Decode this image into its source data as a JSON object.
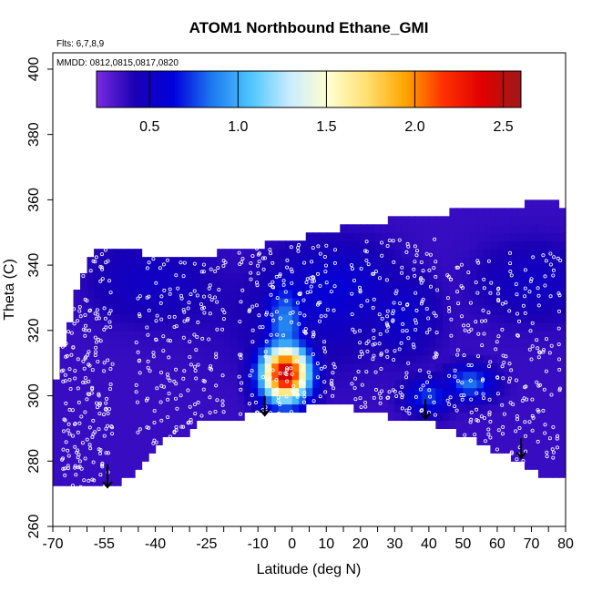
{
  "chart_data": {
    "type": "heatmap",
    "title": "ATOM1 Northbound Ethane_GMI",
    "notes": {
      "flights": "Flts: 6,7,8,9",
      "dates": "MMDD: 0812,0815,0817,0820"
    },
    "xlabel": "Latitude (deg N)",
    "ylabel": "Theta (C)",
    "xlim": [
      -70,
      80
    ],
    "ylim": [
      260,
      405
    ],
    "x_major_ticks": [
      -70,
      -55,
      -40,
      -25,
      -10,
      0,
      10,
      20,
      30,
      40,
      50,
      60,
      70,
      80
    ],
    "x_tick_labels": [
      "-70",
      "-55",
      "-40",
      "-25",
      "-10",
      "0",
      "10",
      "20",
      "30",
      "40",
      "50",
      "60",
      "70",
      "80"
    ],
    "x_minor_step": 5,
    "y_ticks": [
      260,
      280,
      300,
      320,
      340,
      360,
      380,
      400
    ],
    "y_tick_labels": [
      "260",
      "280",
      "300",
      "320",
      "340",
      "360",
      "380",
      "400"
    ],
    "colorbar": {
      "range": [
        0.2,
        2.6
      ],
      "ticks": [
        0.5,
        1.0,
        1.5,
        2.0,
        2.5
      ],
      "tick_labels": [
        "0.5",
        "1.0",
        "1.5",
        "2.0",
        "2.5"
      ],
      "colors": [
        "#7a2be0",
        "#1a00b4",
        "#0000dd",
        "#1e7af0",
        "#4ec6ff",
        "#c8ecff",
        "#ffffd0",
        "#ffe070",
        "#ffa500",
        "#ff3000",
        "#e00000",
        "#a01818"
      ]
    },
    "domain_lower_boundary": [
      [
        -70,
        272
      ],
      [
        -52,
        272
      ],
      [
        -46,
        276
      ],
      [
        -38,
        286
      ],
      [
        -32,
        288
      ],
      [
        -25,
        293
      ],
      [
        -10,
        294
      ],
      [
        0,
        295
      ],
      [
        10,
        298
      ],
      [
        20,
        296
      ],
      [
        30,
        293
      ],
      [
        40,
        292
      ],
      [
        50,
        288
      ],
      [
        60,
        283
      ],
      [
        70,
        278
      ],
      [
        72,
        276
      ],
      [
        80,
        276
      ]
    ],
    "domain_upper_boundary": [
      [
        -69,
        304
      ],
      [
        -68,
        313
      ],
      [
        -65,
        322
      ],
      [
        -62,
        336
      ],
      [
        -58,
        345
      ],
      [
        -52,
        345
      ],
      [
        -45,
        344
      ],
      [
        -30,
        342
      ],
      [
        -20,
        344
      ],
      [
        -5,
        347
      ],
      [
        10,
        350
      ],
      [
        20,
        353
      ],
      [
        30,
        354
      ],
      [
        40,
        355
      ],
      [
        50,
        357
      ],
      [
        60,
        358
      ],
      [
        70,
        359
      ],
      [
        75,
        360
      ],
      [
        79,
        358
      ],
      [
        80,
        310
      ]
    ],
    "field_features": [
      {
        "lat_center": -2,
        "theta_center": 307,
        "lat_halfwidth": 8,
        "theta_halfwidth": 10,
        "peak_value": 2.5
      },
      {
        "lat_center": -2,
        "theta_center": 322,
        "lat_halfwidth": 7,
        "theta_halfwidth": 16,
        "peak_value": 0.9
      },
      {
        "lat_center": 52,
        "theta_center": 304,
        "lat_halfwidth": 8,
        "theta_halfwidth": 6,
        "peak_value": 0.85
      },
      {
        "lat_center": 40,
        "theta_center": 300,
        "lat_halfwidth": 8,
        "theta_halfwidth": 6,
        "peak_value": 0.75
      },
      {
        "lat_center": 32,
        "theta_center": 325,
        "lat_halfwidth": 12,
        "theta_halfwidth": 15,
        "peak_value": 0.55
      }
    ],
    "background_value": 0.35,
    "flight_tracks": [
      {
        "lat": [
          -67,
          -66,
          -65,
          -64,
          -63,
          -62,
          -61,
          -60,
          -59,
          -58,
          -57,
          -56,
          -55,
          -54,
          -53
        ],
        "theta_min": 272,
        "theta_max": 345
      },
      {
        "lat": [
          -45,
          -42,
          -40,
          -38,
          -36,
          -34,
          -32,
          -30,
          -28,
          -26,
          -24,
          -22,
          -20
        ],
        "theta_min": 285,
        "theta_max": 342
      },
      {
        "lat": [
          -15,
          -12,
          -10,
          -8,
          -6,
          -4,
          -2,
          0,
          2,
          4,
          6,
          8,
          10,
          12
        ],
        "theta_min": 294,
        "theta_max": 347
      },
      {
        "lat": [
          18,
          20,
          22,
          24,
          26,
          28,
          30,
          32,
          34,
          36,
          38,
          40,
          42
        ],
        "theta_min": 293,
        "theta_max": 348
      },
      {
        "lat": [
          46,
          48,
          50,
          52,
          54,
          56,
          58,
          60,
          62,
          64,
          66,
          68,
          70,
          72,
          74,
          76,
          78
        ],
        "theta_min": 280,
        "theta_max": 344
      }
    ],
    "arrows": [
      {
        "lat": -54,
        "theta_start": 279,
        "theta_end": 272
      },
      {
        "lat": -8,
        "theta_start": 300,
        "theta_end": 294
      },
      {
        "lat": 39,
        "theta_start": 299,
        "theta_end": 293
      },
      {
        "lat": 67,
        "theta_start": 287,
        "theta_end": 281
      }
    ]
  }
}
